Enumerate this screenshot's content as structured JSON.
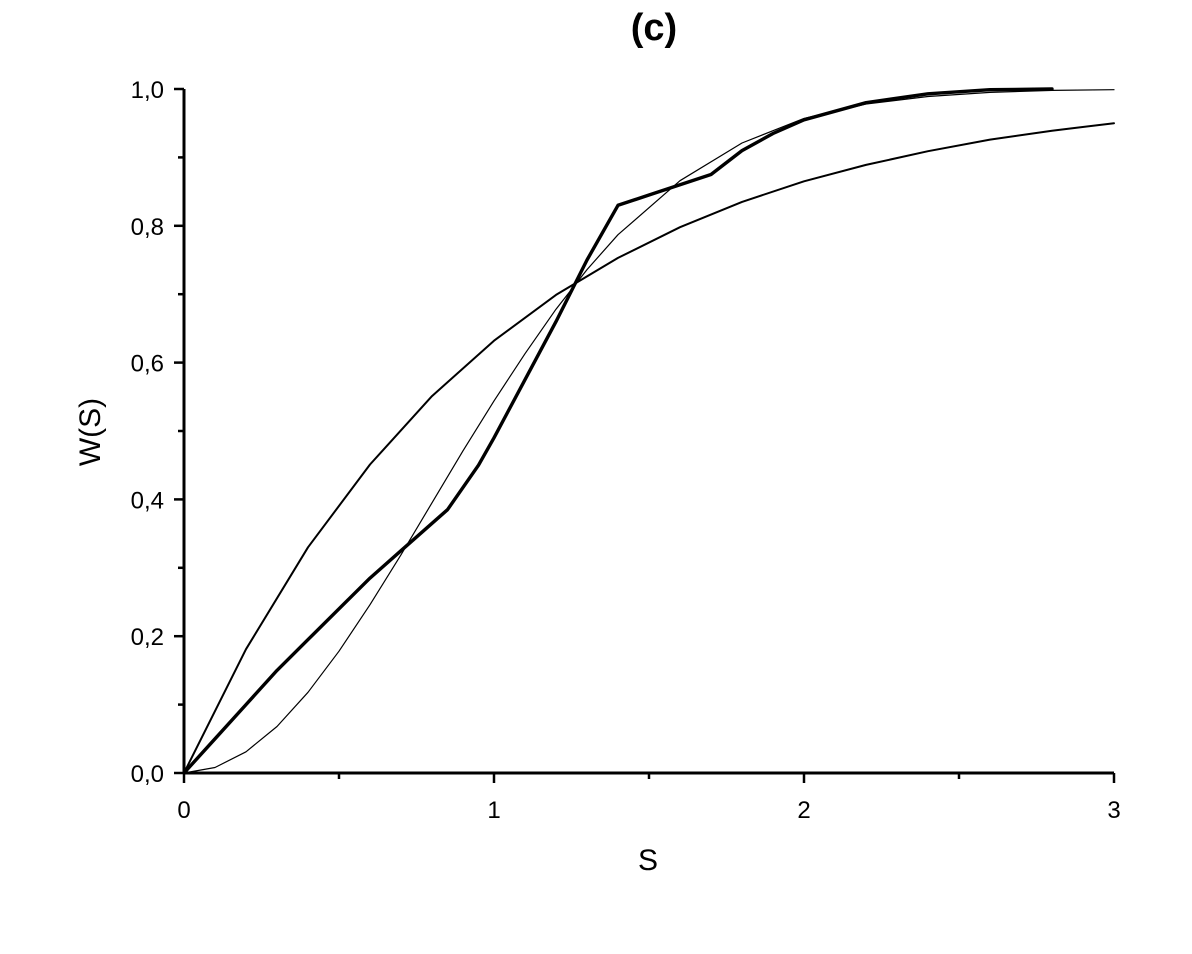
{
  "chart_data": {
    "type": "line",
    "title": "(c)",
    "xlabel": "S",
    "ylabel": "W(S)",
    "xlim": [
      0,
      3
    ],
    "ylim": [
      0,
      1
    ],
    "x_ticks": [
      "0",
      "1",
      "2",
      "3"
    ],
    "y_ticks": [
      "0,0",
      "0,2",
      "0,4",
      "0,6",
      "0,8",
      "1,0"
    ],
    "x_tick_values": [
      0,
      1,
      2,
      3
    ],
    "y_tick_values": [
      0,
      0.2,
      0.4,
      0.6,
      0.8,
      1.0
    ],
    "x_minor_tick_values": [
      0.5,
      1.5,
      2.5
    ],
    "y_minor_tick_values": [
      0.1,
      0.3,
      0.5,
      0.7,
      0.9
    ],
    "grid": false,
    "legend": "none",
    "series": [
      {
        "style": "medium",
        "x": [
          0,
          0.2,
          0.4,
          0.6,
          0.8,
          1.0,
          1.2,
          1.4,
          1.6,
          1.8,
          2.0,
          2.2,
          2.4,
          2.6,
          2.8,
          3.0
        ],
        "y": [
          0,
          0.181,
          0.33,
          0.451,
          0.551,
          0.632,
          0.699,
          0.753,
          0.798,
          0.835,
          0.865,
          0.889,
          0.909,
          0.926,
          0.939,
          0.95
        ]
      },
      {
        "style": "thin",
        "x": [
          0,
          0.1,
          0.2,
          0.3,
          0.4,
          0.5,
          0.6,
          0.7,
          0.8,
          0.9,
          1.0,
          1.1,
          1.2,
          1.3,
          1.4,
          1.6,
          1.8,
          2.0,
          2.2,
          2.4,
          2.6,
          2.8,
          3.0
        ],
        "y": [
          0,
          0.008,
          0.031,
          0.068,
          0.118,
          0.178,
          0.246,
          0.319,
          0.395,
          0.471,
          0.544,
          0.613,
          0.678,
          0.736,
          0.787,
          0.866,
          0.921,
          0.957,
          0.978,
          0.989,
          0.995,
          0.998,
          0.999
        ]
      },
      {
        "style": "bold",
        "x": [
          0,
          0.1,
          0.2,
          0.3,
          0.4,
          0.5,
          0.6,
          0.7,
          0.85,
          0.95,
          1.0,
          1.1,
          1.2,
          1.3,
          1.4,
          1.5,
          1.6,
          1.7,
          1.8,
          1.9,
          2.0,
          2.2,
          2.4,
          2.6,
          2.8
        ],
        "y": [
          0,
          0.05,
          0.1,
          0.15,
          0.195,
          0.24,
          0.285,
          0.325,
          0.385,
          0.45,
          0.49,
          0.575,
          0.66,
          0.75,
          0.83,
          0.845,
          0.86,
          0.875,
          0.91,
          0.935,
          0.955,
          0.98,
          0.993,
          0.999,
          1.0
        ]
      }
    ]
  }
}
